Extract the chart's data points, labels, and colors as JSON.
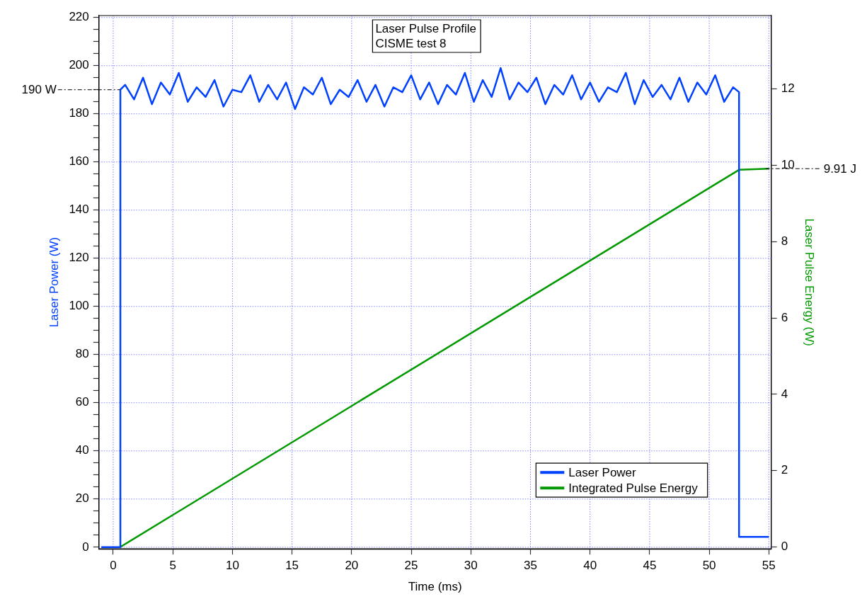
{
  "chart_data": {
    "type": "line",
    "title": "Laser Pulse Profile",
    "subtitle": "CISME test 8",
    "xlabel": "Time (ms)",
    "ylabel": "Laser Power (W)",
    "y2label": "Laser Pulse Energy (W)",
    "xlim": [
      -1.2,
      55.2
    ],
    "xticks": [
      0,
      5,
      10,
      15,
      20,
      25,
      30,
      35,
      40,
      45,
      50,
      55
    ],
    "ylim": [
      -0.7,
      220.8
    ],
    "yticks": [
      0,
      {
        "value": 5,
        "label": null
      },
      {
        "value": 10,
        "label": null
      },
      {
        "value": 15,
        "label": null
      },
      20,
      {
        "value": 25,
        "label": null
      },
      {
        "value": 30,
        "label": null
      },
      {
        "value": 35,
        "label": null
      },
      40,
      {
        "value": 45,
        "label": null
      },
      {
        "value": 50,
        "label": null
      },
      {
        "value": 55,
        "label": null
      },
      60,
      {
        "value": 65,
        "label": null
      },
      {
        "value": 70,
        "label": null
      },
      {
        "value": 75,
        "label": null
      },
      80,
      {
        "value": 85,
        "label": null
      },
      {
        "value": 90,
        "label": null
      },
      {
        "value": 95,
        "label": null
      },
      100,
      {
        "value": 105,
        "label": null
      },
      {
        "value": 110,
        "label": null
      },
      {
        "value": 115,
        "label": null
      },
      120,
      {
        "value": 125,
        "label": null
      },
      {
        "value": 130,
        "label": null
      },
      {
        "value": 135,
        "label": null
      },
      140,
      {
        "value": 145,
        "label": null
      },
      {
        "value": 150,
        "label": null
      },
      {
        "value": 155,
        "label": null
      },
      160,
      {
        "value": 165,
        "label": null
      },
      {
        "value": 170,
        "label": null
      },
      {
        "value": 175,
        "label": null
      },
      180,
      {
        "value": 185,
        "label": null
      },
      {
        "value": 190,
        "label": null
      },
      {
        "value": 195,
        "label": null
      },
      200,
      {
        "value": 205,
        "label": null
      },
      {
        "value": 210,
        "label": null
      },
      {
        "value": 215,
        "label": null
      },
      220
    ],
    "y2lim": [
      -0.05,
      13.92
    ],
    "y2ticks": [
      0,
      2,
      4,
      6,
      8,
      10,
      12
    ],
    "grid": true,
    "legend": "bottom right",
    "marker": "none",
    "line_style": "solid",
    "series": [
      {
        "name": "Laser Power",
        "color": "#0040ff",
        "x": [
          -1,
          0.6,
          0.6,
          1,
          1.75,
          2.5,
          3.25,
          4,
          4.75,
          5.5,
          6.25,
          7,
          7.75,
          8.5,
          9.25,
          10,
          10.75,
          11.5,
          12.25,
          13,
          13.75,
          14.5,
          15.25,
          16,
          16.75,
          17.5,
          18.25,
          19,
          19.75,
          20.5,
          21.25,
          22,
          22.75,
          23.5,
          24.25,
          25,
          25.75,
          26.5,
          27.25,
          28,
          28.75,
          29.5,
          30.25,
          31,
          31.75,
          32.5,
          33.25,
          34,
          34.75,
          35.5,
          36.25,
          37,
          37.75,
          38.5,
          39.25,
          40,
          40.75,
          41.5,
          42.25,
          43,
          43.75,
          44.5,
          45.25,
          46,
          46.75,
          47.5,
          48.25,
          49,
          49.75,
          50.5,
          51.25,
          52,
          52.5,
          52.5,
          55
        ],
        "values": [
          0,
          0,
          190,
          192,
          186,
          195,
          184,
          193,
          188,
          197,
          185,
          191,
          187,
          194,
          183,
          190,
          189,
          196,
          185,
          192,
          186,
          193,
          182,
          191,
          188,
          195,
          184,
          190,
          187,
          194,
          185,
          192,
          183,
          191,
          189,
          196,
          186,
          193,
          184,
          192,
          188,
          197,
          185,
          194,
          187,
          199,
          186,
          193,
          189,
          195,
          184,
          192,
          188,
          196,
          186,
          193,
          185,
          191,
          189,
          197,
          184,
          194,
          187,
          192,
          186,
          195,
          185,
          193,
          188,
          196,
          185,
          191,
          189,
          4.3,
          4.3
        ]
      },
      {
        "name": "Integrated Pulse Energy",
        "color": "#009900",
        "axis": "y2",
        "x": [
          0.6,
          52.5,
          55
        ],
        "values": [
          0,
          9.88,
          9.91
        ]
      }
    ],
    "ref_lines": [
      {
        "axis": "y",
        "value": 190,
        "label": "190 W"
      },
      {
        "axis": "y2",
        "value": 9.91,
        "label": "9.91 J"
      }
    ]
  }
}
